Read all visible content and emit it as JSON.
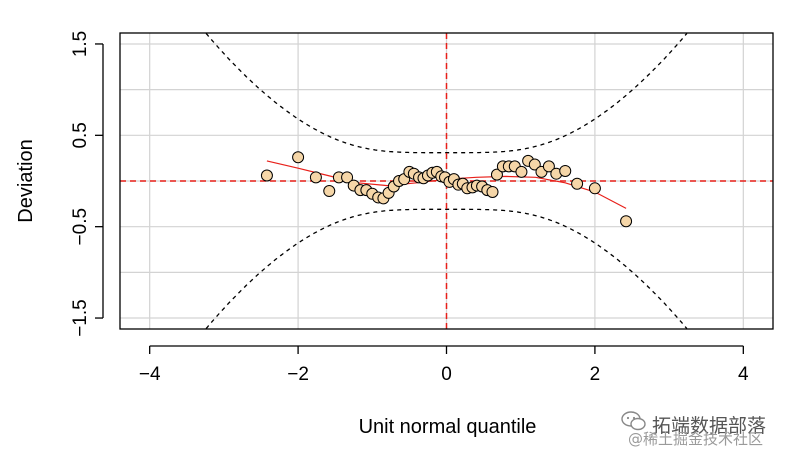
{
  "chart_data": {
    "type": "scatter",
    "title": "",
    "xlabel": "Unit normal quantile",
    "ylabel": "Deviation",
    "xlim": [
      -4.4,
      4.4
    ],
    "ylim": [
      -1.62,
      1.62
    ],
    "xticks": [
      -4,
      -2,
      0,
      2,
      4
    ],
    "xtick_labels": [
      "−4",
      "−2",
      "0",
      "2",
      "4"
    ],
    "yticks": [
      -1.5,
      -0.5,
      0.5,
      1.5
    ],
    "ytick_labels": [
      "−1.5",
      "−0.5",
      "0.5",
      "1.5"
    ],
    "grid_x": [
      -4,
      -2,
      0,
      2,
      4
    ],
    "grid_y": [
      -1.5,
      -1.0,
      -0.5,
      0.0,
      0.5,
      1.0,
      1.5
    ],
    "grid": true,
    "colors": {
      "point_fill": "#f5d6a8",
      "point_stroke": "#000000",
      "smooth": "#e8201a",
      "reference": "#e8201a",
      "band": "#000000",
      "grid": "#d3d3d3"
    },
    "reference_lines": {
      "h": 0,
      "v": 0
    },
    "points": [
      [
        -2.42,
        0.06
      ],
      [
        -2.0,
        0.26
      ],
      [
        -1.76,
        0.04
      ],
      [
        -1.58,
        -0.11
      ],
      [
        -1.45,
        0.04
      ],
      [
        -1.34,
        0.04
      ],
      [
        -1.25,
        -0.05
      ],
      [
        -1.16,
        -0.1
      ],
      [
        -1.08,
        -0.1
      ],
      [
        -1.0,
        -0.14
      ],
      [
        -0.92,
        -0.18
      ],
      [
        -0.85,
        -0.19
      ],
      [
        -0.78,
        -0.13
      ],
      [
        -0.71,
        -0.06
      ],
      [
        -0.64,
        0.0
      ],
      [
        -0.57,
        0.02
      ],
      [
        -0.5,
        0.1
      ],
      [
        -0.44,
        0.08
      ],
      [
        -0.37,
        0.04
      ],
      [
        -0.31,
        0.03
      ],
      [
        -0.25,
        0.06
      ],
      [
        -0.19,
        0.09
      ],
      [
        -0.13,
        0.1
      ],
      [
        -0.07,
        0.05
      ],
      [
        -0.02,
        0.04
      ],
      [
        0.04,
        -0.01
      ],
      [
        0.1,
        0.02
      ],
      [
        0.16,
        -0.04
      ],
      [
        0.22,
        -0.03
      ],
      [
        0.28,
        -0.08
      ],
      [
        0.35,
        -0.07
      ],
      [
        0.41,
        -0.05
      ],
      [
        0.48,
        -0.06
      ],
      [
        0.55,
        -0.1
      ],
      [
        0.62,
        -0.12
      ],
      [
        0.68,
        0.07
      ],
      [
        0.76,
        0.16
      ],
      [
        0.84,
        0.16
      ],
      [
        0.92,
        0.16
      ],
      [
        1.01,
        0.1
      ],
      [
        1.1,
        0.22
      ],
      [
        1.19,
        0.18
      ],
      [
        1.28,
        0.1
      ],
      [
        1.38,
        0.16
      ],
      [
        1.48,
        0.08
      ],
      [
        1.6,
        0.11
      ],
      [
        1.76,
        -0.03
      ],
      [
        2.0,
        -0.08
      ],
      [
        2.42,
        -0.44
      ]
    ],
    "smooth_curve": [
      [
        -2.42,
        0.22
      ],
      [
        -2.0,
        0.14
      ],
      [
        -1.6,
        0.06
      ],
      [
        -1.2,
        -0.02
      ],
      [
        -0.8,
        -0.05
      ],
      [
        -0.4,
        -0.02
      ],
      [
        0.0,
        0.02
      ],
      [
        0.4,
        0.04
      ],
      [
        0.8,
        0.05
      ],
      [
        1.2,
        0.04
      ],
      [
        1.6,
        -0.02
      ],
      [
        2.0,
        -0.12
      ],
      [
        2.42,
        -0.3
      ]
    ],
    "confidence_band": {
      "center": 0,
      "min_halfwidth": 0.31,
      "shape": "hyperbolic"
    }
  },
  "watermark": {
    "line1": "拓端数据部落",
    "line2": "@稀土掘金技术社区"
  }
}
